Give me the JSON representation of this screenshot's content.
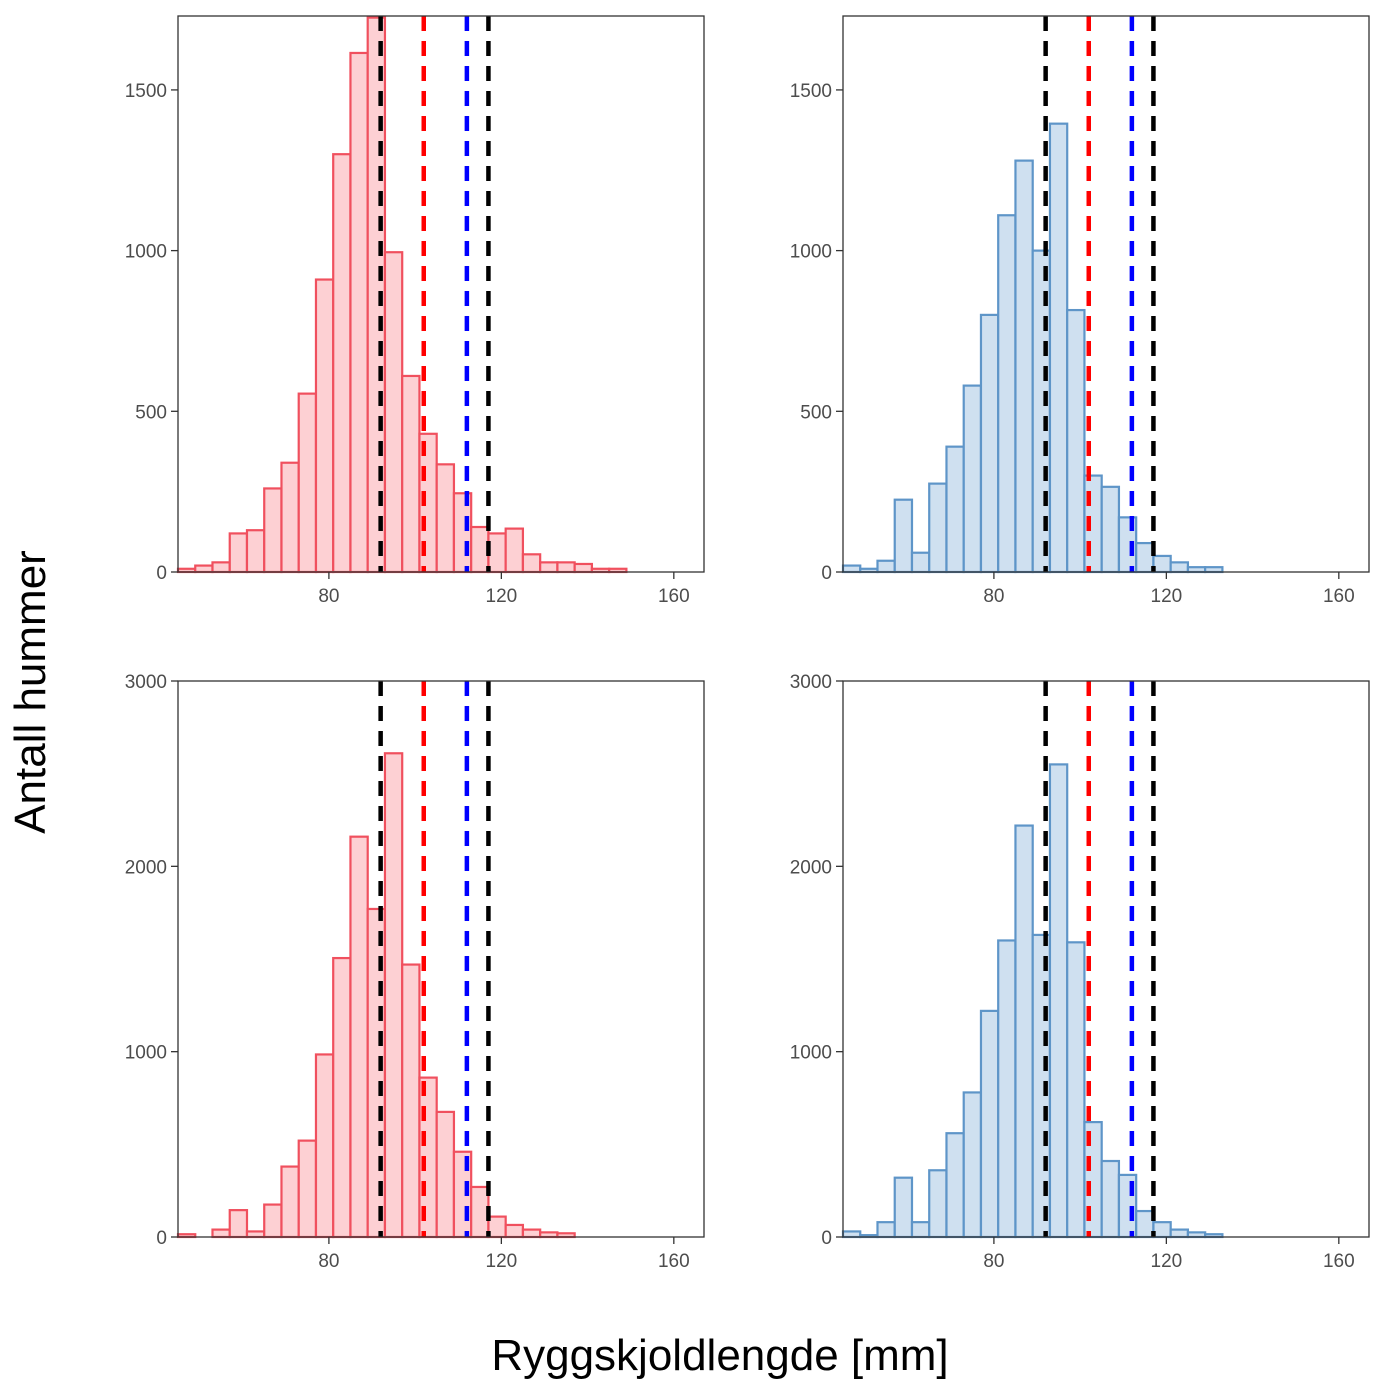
{
  "figure": {
    "ylabel": "Antall hummer",
    "xlabel": "Ryggskjoldlengde [mm]"
  },
  "colors": {
    "red_fill": "#fdd0d3",
    "red_stroke": "#f0505e",
    "blue_fill": "#cfe0f0",
    "blue_stroke": "#5e95c8",
    "ref_black": "#000000",
    "ref_red": "#ff0000",
    "ref_blue": "#0000ff"
  },
  "chart_data": [
    {
      "type": "bar",
      "series_color": "red",
      "xlim": [
        45,
        167
      ],
      "ylim": [
        0,
        1730
      ],
      "xticks": [
        80,
        120,
        160
      ],
      "yticks": [
        0,
        500,
        1000,
        1500
      ],
      "bin_width": 4,
      "bin_starts": [
        45,
        49,
        53,
        57,
        61,
        65,
        69,
        73,
        77,
        81,
        85,
        89,
        93,
        97,
        101,
        105,
        109,
        113,
        117,
        121,
        125,
        129,
        133,
        137,
        141,
        145,
        149
      ],
      "counts": [
        10,
        20,
        30,
        120,
        130,
        260,
        340,
        555,
        910,
        1300,
        1615,
        1725,
        995,
        610,
        430,
        335,
        245,
        140,
        120,
        135,
        55,
        30,
        30,
        25,
        10,
        10,
        0
      ],
      "ref_lines": [
        {
          "x": 92,
          "color": "black"
        },
        {
          "x": 102,
          "color": "red"
        },
        {
          "x": 112,
          "color": "blue"
        },
        {
          "x": 117,
          "color": "black"
        }
      ]
    },
    {
      "type": "bar",
      "series_color": "blue",
      "xlim": [
        45,
        167
      ],
      "ylim": [
        0,
        1730
      ],
      "xticks": [
        80,
        120,
        160
      ],
      "yticks": [
        0,
        500,
        1000,
        1500
      ],
      "bin_width": 4,
      "bin_starts": [
        45,
        49,
        53,
        57,
        61,
        65,
        69,
        73,
        77,
        81,
        85,
        89,
        93,
        97,
        101,
        105,
        109,
        113,
        117,
        121,
        125,
        129,
        133
      ],
      "counts": [
        20,
        10,
        35,
        225,
        60,
        275,
        390,
        580,
        800,
        1110,
        1280,
        1000,
        1395,
        815,
        300,
        265,
        170,
        90,
        50,
        30,
        15,
        15,
        0
      ],
      "ref_lines": [
        {
          "x": 92,
          "color": "black"
        },
        {
          "x": 102,
          "color": "red"
        },
        {
          "x": 112,
          "color": "blue"
        },
        {
          "x": 117,
          "color": "black"
        }
      ]
    },
    {
      "type": "bar",
      "series_color": "red",
      "xlim": [
        45,
        167
      ],
      "ylim": [
        0,
        3000
      ],
      "xticks": [
        80,
        120,
        160
      ],
      "yticks": [
        0,
        1000,
        2000,
        3000
      ],
      "bin_width": 4,
      "bin_starts": [
        45,
        49,
        53,
        57,
        61,
        65,
        69,
        73,
        77,
        81,
        85,
        89,
        93,
        97,
        101,
        105,
        109,
        113,
        117,
        121,
        125,
        129,
        133,
        137
      ],
      "counts": [
        15,
        0,
        40,
        145,
        30,
        175,
        380,
        520,
        985,
        1505,
        2160,
        1770,
        2610,
        1470,
        860,
        675,
        460,
        270,
        110,
        65,
        40,
        25,
        20,
        0
      ],
      "ref_lines": [
        {
          "x": 92,
          "color": "black"
        },
        {
          "x": 102,
          "color": "red"
        },
        {
          "x": 112,
          "color": "blue"
        },
        {
          "x": 117,
          "color": "black"
        }
      ]
    },
    {
      "type": "bar",
      "series_color": "blue",
      "xlim": [
        45,
        167
      ],
      "ylim": [
        0,
        3000
      ],
      "xticks": [
        80,
        120,
        160
      ],
      "yticks": [
        0,
        1000,
        2000,
        3000
      ],
      "bin_width": 4,
      "bin_starts": [
        45,
        49,
        53,
        57,
        61,
        65,
        69,
        73,
        77,
        81,
        85,
        89,
        93,
        97,
        101,
        105,
        109,
        113,
        117,
        121,
        125,
        129,
        133
      ],
      "counts": [
        30,
        10,
        80,
        320,
        80,
        360,
        560,
        780,
        1220,
        1600,
        2220,
        1630,
        2550,
        1590,
        620,
        410,
        335,
        140,
        80,
        40,
        25,
        15,
        0
      ],
      "ref_lines": [
        {
          "x": 92,
          "color": "black"
        },
        {
          "x": 102,
          "color": "red"
        },
        {
          "x": 112,
          "color": "blue"
        },
        {
          "x": 117,
          "color": "black"
        }
      ]
    }
  ]
}
